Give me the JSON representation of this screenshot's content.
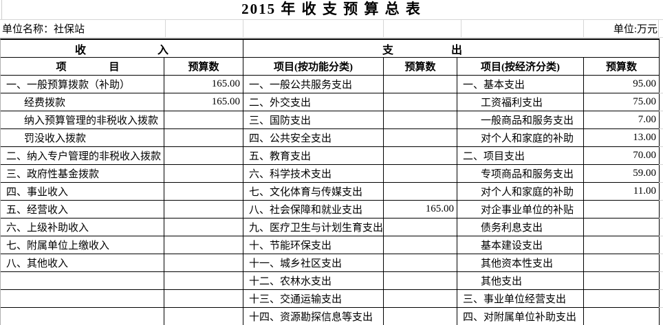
{
  "title": "2015 年 收 支 预 算 总 表",
  "meta": {
    "unit_name": "单位名称：社保站",
    "unit_label": "单位:万元"
  },
  "colors": {
    "text": "#000000",
    "table_border": "#000000",
    "gridline": "#d6d6d6",
    "background": "#ffffff"
  },
  "table": {
    "section_headers": {
      "income": "收入",
      "expenditure": "支出"
    },
    "column_headers": {
      "income_item": "项目",
      "income_budget": "预算数",
      "function_item": "项目(按功能分类)",
      "function_budget": "预算数",
      "economic_item": "项目(按经济分类)",
      "economic_budget": "预算数"
    },
    "rows": [
      {
        "income": "一、一般预算拨款（补助）",
        "income_indent": false,
        "income_value": "165.00",
        "func": "一、一般公共服务支出",
        "func_value": "",
        "econ": "一、基本支出",
        "econ_indent": false,
        "econ_value": "95.00"
      },
      {
        "income": "经费拨款",
        "income_indent": true,
        "income_value": "165.00",
        "func": "二、外交支出",
        "func_value": "",
        "econ": "工资福利支出",
        "econ_indent": true,
        "econ_value": "75.00"
      },
      {
        "income": "纳入预算管理的非税收入拨款",
        "income_indent": true,
        "income_value": "",
        "func": "三、国防支出",
        "func_value": "",
        "econ": "一般商品和服务支出",
        "econ_indent": true,
        "econ_value": "7.00"
      },
      {
        "income": "罚没收入拨款",
        "income_indent": true,
        "income_value": "",
        "func": "四、公共安全支出",
        "func_value": "",
        "econ": "对个人和家庭的补助",
        "econ_indent": true,
        "econ_value": "13.00"
      },
      {
        "income": "二、纳入专户管理的非税收入拨款",
        "income_indent": false,
        "income_value": "",
        "func": "五、教育支出",
        "func_value": "",
        "econ": "二、项目支出",
        "econ_indent": false,
        "econ_value": "70.00"
      },
      {
        "income": "三、政府性基金拨款",
        "income_indent": false,
        "income_value": "",
        "func": "六、科学技术支出",
        "func_value": "",
        "econ": "专项商品和服务支出",
        "econ_indent": true,
        "econ_value": "59.00"
      },
      {
        "income": "四、事业收入",
        "income_indent": false,
        "income_value": "",
        "func": "七、文化体育与传媒支出",
        "func_value": "",
        "econ": "对个人和家庭的补助",
        "econ_indent": true,
        "econ_value": "11.00"
      },
      {
        "income": "五、经营收入",
        "income_indent": false,
        "income_value": "",
        "func": "八、社会保障和就业支出",
        "func_value": "165.00",
        "econ": "对企事业单位的补贴",
        "econ_indent": true,
        "econ_value": ""
      },
      {
        "income": "六、上级补助收入",
        "income_indent": false,
        "income_value": "",
        "func": "九、医疗卫生与计划生育支出",
        "func_value": "",
        "econ": "债务利息支出",
        "econ_indent": true,
        "econ_value": ""
      },
      {
        "income": "七、附属单位上缴收入",
        "income_indent": false,
        "income_value": "",
        "func": "十、节能环保支出",
        "func_value": "",
        "econ": "基本建设支出",
        "econ_indent": true,
        "econ_value": ""
      },
      {
        "income": "八、其他收入",
        "income_indent": false,
        "income_value": "",
        "func": "十一、城乡社区支出",
        "func_value": "",
        "econ": "其他资本性支出",
        "econ_indent": true,
        "econ_value": ""
      },
      {
        "income": "",
        "income_indent": false,
        "income_value": "",
        "func": "十二、农林水支出",
        "func_value": "",
        "econ": "其他支出",
        "econ_indent": true,
        "econ_value": ""
      },
      {
        "income": "",
        "income_indent": false,
        "income_value": "",
        "func": "十三、交通运输支出",
        "func_value": "",
        "econ": "三、事业单位经营支出",
        "econ_indent": false,
        "econ_value": ""
      },
      {
        "income": "",
        "income_indent": false,
        "income_value": "",
        "func": "十四、资源勘探信息等支出",
        "func_value": "",
        "econ": "四、对附属单位补助支出",
        "econ_indent": false,
        "econ_value": ""
      }
    ]
  }
}
